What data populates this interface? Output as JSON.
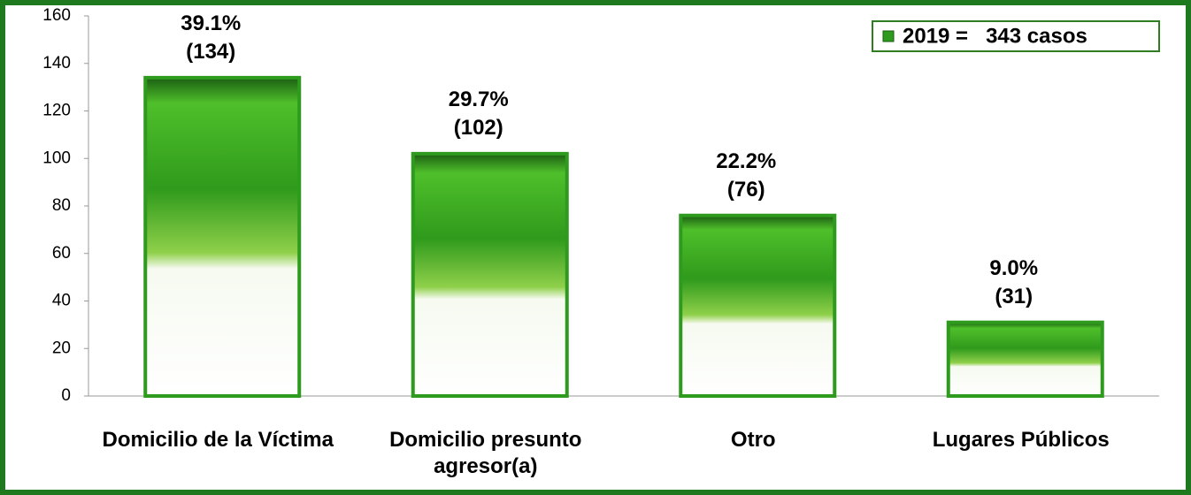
{
  "chart_data": {
    "type": "bar",
    "categories": [
      "Domicilio de la Víctima",
      "Domicilio presunto agresor(a)",
      "Otro",
      "Lugares Públicos"
    ],
    "series": [
      {
        "name": "2019 =   343 casos",
        "color": "#2e9a1e",
        "values": [
          134,
          102,
          76,
          31
        ],
        "value_labels": [
          "(134)",
          "(102)",
          "(76)",
          "(31)"
        ],
        "percent_labels": [
          "39.1%",
          "29.7%",
          "22.2%",
          "9.0%"
        ]
      }
    ],
    "ylim": [
      0,
      160
    ],
    "yticks": [
      0,
      20,
      40,
      60,
      80,
      100,
      120,
      140,
      160
    ],
    "grid": false,
    "legend": "top-right"
  }
}
